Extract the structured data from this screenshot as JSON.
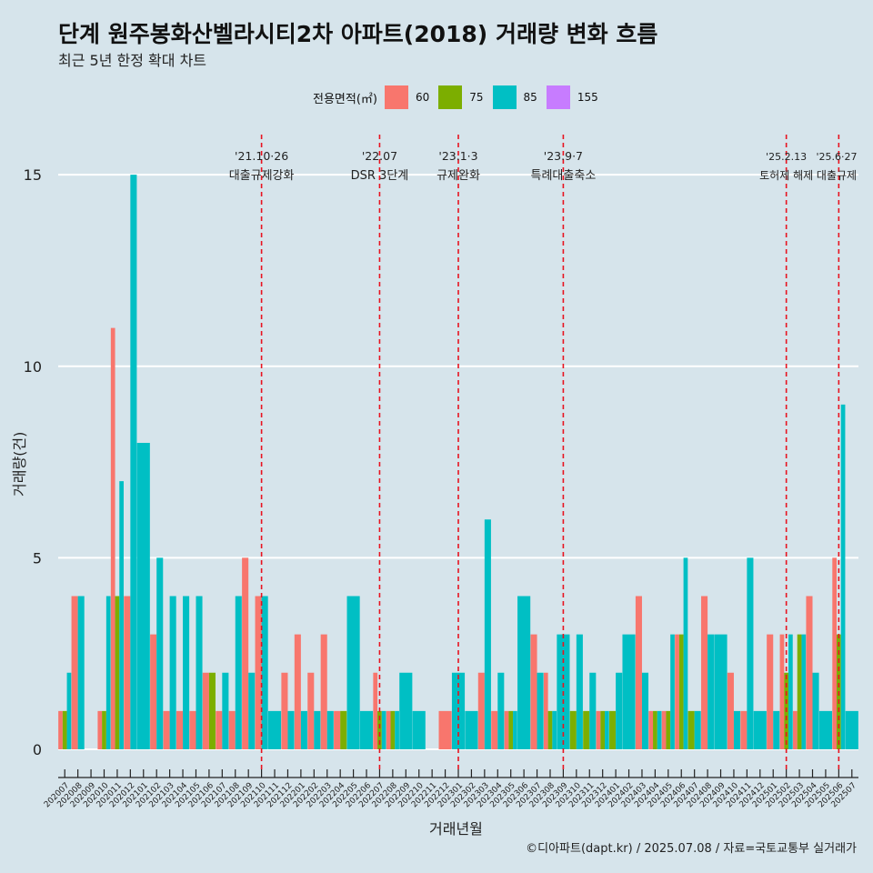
{
  "title": "단계 원주봉화산벨라시티2차 아파트(2018) 거래량 변화 흐름",
  "subtitle": "최근 5년 한정 확대 차트",
  "caption": "©디아파트(dapt.kr) / 2025.07.08 / 자료=국토교통부 실거래가",
  "legend": {
    "title": "전용면적(㎡)",
    "items": [
      {
        "label": "60",
        "color": "#f8766d"
      },
      {
        "label": "75",
        "color": "#7cae00"
      },
      {
        "label": "85",
        "color": "#00bfc4"
      },
      {
        "label": "155",
        "color": "#c77cff"
      }
    ]
  },
  "chart_data": {
    "type": "bar",
    "title": "단계 원주봉화산벨라시티2차 아파트(2018) 거래량 변화 흐름",
    "xlabel": "거래년월",
    "ylabel": "거래량(건)",
    "ylim": [
      0,
      16
    ],
    "yticks": [
      0,
      5,
      10,
      15
    ],
    "categories": [
      "202007",
      "202008",
      "202009",
      "202010",
      "202011",
      "202012",
      "202101",
      "202102",
      "202103",
      "202104",
      "202105",
      "202106",
      "202107",
      "202108",
      "202109",
      "202110",
      "202111",
      "202112",
      "202201",
      "202202",
      "202203",
      "202204",
      "202205",
      "202206",
      "202207",
      "202208",
      "202209",
      "202210",
      "202211",
      "202212",
      "202301",
      "202302",
      "202303",
      "202304",
      "202305",
      "202306",
      "202307",
      "202308",
      "202309",
      "202310",
      "202311",
      "202312",
      "202401",
      "202402",
      "202403",
      "202404",
      "202405",
      "202406",
      "202407",
      "202408",
      "202409",
      "202410",
      "202411",
      "202412",
      "202501",
      "202502",
      "202503",
      "202504",
      "202505",
      "202506",
      "202507"
    ],
    "series": [
      {
        "name": "60",
        "color": "#f8766d",
        "values": [
          1,
          4,
          0,
          1,
          11,
          4,
          0,
          3,
          1,
          1,
          1,
          2,
          1,
          1,
          5,
          4,
          0,
          2,
          3,
          2,
          3,
          1,
          0,
          0,
          2,
          1,
          0,
          0,
          0,
          1,
          0,
          0,
          2,
          1,
          1,
          0,
          3,
          2,
          0,
          0,
          0,
          1,
          0,
          0,
          4,
          1,
          1,
          3,
          0,
          4,
          0,
          2,
          1,
          0,
          3,
          3,
          1,
          4,
          0,
          5,
          0
        ]
      },
      {
        "name": "75",
        "color": "#7cae00",
        "values": [
          1,
          0,
          0,
          1,
          4,
          0,
          0,
          0,
          0,
          0,
          0,
          2,
          0,
          0,
          0,
          0,
          0,
          0,
          0,
          0,
          0,
          1,
          0,
          0,
          1,
          1,
          0,
          0,
          0,
          0,
          0,
          0,
          0,
          0,
          1,
          0,
          0,
          1,
          0,
          1,
          1,
          1,
          1,
          0,
          0,
          1,
          1,
          3,
          1,
          0,
          0,
          0,
          0,
          0,
          0,
          2,
          3,
          0,
          0,
          3,
          0
        ]
      },
      {
        "name": "85",
        "color": "#00bfc4",
        "values": [
          2,
          4,
          0,
          4,
          7,
          15,
          8,
          5,
          4,
          4,
          4,
          0,
          2,
          4,
          2,
          4,
          1,
          1,
          1,
          1,
          1,
          0,
          4,
          1,
          1,
          1,
          2,
          1,
          0,
          0,
          2,
          1,
          6,
          2,
          1,
          4,
          2,
          1,
          3,
          3,
          2,
          1,
          2,
          3,
          2,
          1,
          3,
          5,
          1,
          3,
          3,
          1,
          5,
          1,
          1,
          3,
          3,
          2,
          1,
          9,
          1
        ]
      },
      {
        "name": "155",
        "color": "#c77cff",
        "values": [
          0,
          0,
          0,
          0,
          0,
          0,
          0,
          0,
          0,
          0,
          0,
          0,
          0,
          0,
          0,
          0,
          0,
          0,
          0,
          0,
          0,
          0,
          0,
          0,
          0,
          0,
          0,
          0,
          0,
          0,
          0,
          0,
          0,
          0,
          0,
          0,
          0,
          0,
          0,
          0,
          0,
          0,
          0,
          0,
          0,
          0,
          0,
          0,
          0,
          0,
          0,
          0,
          0,
          0,
          0,
          0,
          0,
          0,
          0,
          0,
          0
        ]
      }
    ],
    "annotations": [
      {
        "x": "202110",
        "date": "'21.10·26",
        "text": "대출규제강화"
      },
      {
        "x": "202207",
        "date": "'22.07",
        "text": "DSR 3단계"
      },
      {
        "x": "202301",
        "date": "'23.1·3",
        "text": "규제완화"
      },
      {
        "x": "202309",
        "date": "'23.9·7",
        "text": "특례대출축소"
      },
      {
        "x": "202502",
        "date": "'25.2.13",
        "text": "토허제 해제"
      },
      {
        "x": "202506",
        "date": "'25.6·27",
        "text": "대출규제"
      }
    ]
  }
}
